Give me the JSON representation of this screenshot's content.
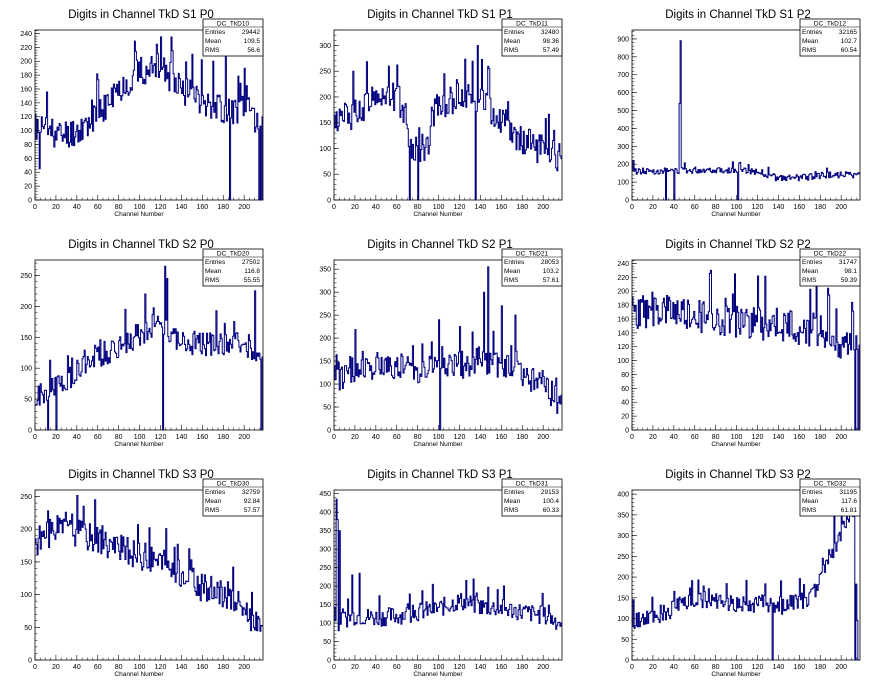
{
  "chart_data": [
    {
      "type": "histogram",
      "title": "Digits in Channel TkD S1 P0",
      "xlabel": "Channel Number",
      "xlim": [
        0,
        218
      ],
      "ylim": [
        0,
        245
      ],
      "xticks": [
        "0",
        "20",
        "40",
        "60",
        "80",
        "100",
        "120",
        "140",
        "160",
        "180",
        "200"
      ],
      "yticks": [
        "0",
        "20",
        "40",
        "60",
        "80",
        "100",
        "120",
        "140",
        "160",
        "180",
        "200",
        "220",
        "240"
      ],
      "stats": {
        "name": "DC_TkD10",
        "entries_label": "Entries",
        "entries": "29442",
        "mean_label": "Mean",
        "mean": "109.5",
        "rms_label": "RMS",
        "rms": "56.6"
      },
      "profile": [
        [
          0,
          105
        ],
        [
          10,
          105
        ],
        [
          20,
          92
        ],
        [
          40,
          100
        ],
        [
          60,
          122
        ],
        [
          80,
          160
        ],
        [
          100,
          185
        ],
        [
          120,
          190
        ],
        [
          140,
          160
        ],
        [
          160,
          145
        ],
        [
          180,
          130
        ],
        [
          200,
          130
        ],
        [
          218,
          110
        ]
      ],
      "spikes": [
        [
          4,
          45
        ],
        [
          120,
          235
        ],
        [
          131,
          215
        ],
        [
          150,
          210
        ],
        [
          170,
          200
        ],
        [
          182,
          225
        ],
        [
          186,
          0
        ],
        [
          200,
          190
        ],
        [
          214,
          0
        ],
        [
          216,
          0
        ]
      ],
      "noise": 22,
      "seed": 11,
      "color": "#00007f"
    },
    {
      "type": "histogram",
      "title": "Digits in Channel TkD S1 P1",
      "xlabel": "Channel Number",
      "xlim": [
        0,
        218
      ],
      "ylim": [
        0,
        330
      ],
      "xticks": [
        "0",
        "20",
        "40",
        "60",
        "80",
        "100",
        "120",
        "140",
        "160",
        "180",
        "200"
      ],
      "yticks": [
        "0",
        "50",
        "100",
        "150",
        "200",
        "250",
        "300"
      ],
      "stats": {
        "name": "DC_TkD11",
        "entries_label": "Entries",
        "entries": "32480",
        "mean_label": "Mean",
        "mean": "98.36",
        "rms_label": "RMS",
        "rms": "57.49"
      },
      "profile": [
        [
          0,
          150
        ],
        [
          20,
          170
        ],
        [
          40,
          205
        ],
        [
          60,
          200
        ],
        [
          70,
          160
        ],
        [
          72,
          100
        ],
        [
          90,
          100
        ],
        [
          92,
          170
        ],
        [
          120,
          200
        ],
        [
          140,
          200
        ],
        [
          160,
          150
        ],
        [
          180,
          115
        ],
        [
          200,
          95
        ],
        [
          218,
          80
        ]
      ],
      "spikes": [
        [
          72,
          0
        ],
        [
          80,
          0
        ],
        [
          137,
          300
        ],
        [
          135,
          0
        ],
        [
          52,
          260
        ],
        [
          60,
          262
        ],
        [
          105,
          245
        ]
      ],
      "noise": 30,
      "seed": 12,
      "color": "#00007f"
    },
    {
      "type": "histogram",
      "title": "Digits in Channel TkD S1 P2",
      "xlabel": "Channel Number",
      "xlim": [
        0,
        218
      ],
      "ylim": [
        0,
        950
      ],
      "xticks": [
        "0",
        "20",
        "40",
        "60",
        "80",
        "100",
        "120",
        "140",
        "160",
        "180",
        "200"
      ],
      "yticks": [
        "0",
        "100",
        "200",
        "300",
        "400",
        "500",
        "600",
        "700",
        "800",
        "900"
      ],
      "stats": {
        "name": "DC_TkD12",
        "entries_label": "Entries",
        "entries": "32165",
        "mean_label": "Mean",
        "mean": "102.7",
        "rms_label": "RMS",
        "rms": "60.54"
      },
      "profile": [
        [
          0,
          160
        ],
        [
          40,
          165
        ],
        [
          80,
          170
        ],
        [
          120,
          160
        ],
        [
          140,
          120
        ],
        [
          160,
          125
        ],
        [
          190,
          140
        ],
        [
          218,
          140
        ]
      ],
      "spikes": [
        [
          46,
          890
        ],
        [
          45,
          540
        ],
        [
          32,
          0
        ],
        [
          40,
          0
        ],
        [
          101,
          0
        ],
        [
          1,
          220
        ]
      ],
      "noise": 18,
      "seed": 13,
      "color": "#00007f"
    },
    {
      "type": "histogram",
      "title": "Digits in Channel TkD S2 P0",
      "xlabel": "Channel Number",
      "xlim": [
        0,
        218
      ],
      "ylim": [
        0,
        275
      ],
      "xticks": [
        "0",
        "20",
        "40",
        "60",
        "80",
        "100",
        "120",
        "140",
        "160",
        "180",
        "200"
      ],
      "yticks": [
        "0",
        "50",
        "100",
        "150",
        "200",
        "250"
      ],
      "stats": {
        "name": "DC_TkD20",
        "entries_label": "Entries",
        "entries": "27502",
        "mean_label": "Mean",
        "mean": "116.8",
        "rms_label": "RMS",
        "rms": "55.55"
      },
      "profile": [
        [
          0,
          50
        ],
        [
          20,
          70
        ],
        [
          40,
          95
        ],
        [
          60,
          120
        ],
        [
          80,
          135
        ],
        [
          100,
          155
        ],
        [
          120,
          175
        ],
        [
          140,
          140
        ],
        [
          160,
          140
        ],
        [
          180,
          140
        ],
        [
          200,
          140
        ],
        [
          218,
          120
        ]
      ],
      "spikes": [
        [
          122,
          0
        ],
        [
          124,
          265
        ],
        [
          126,
          245
        ],
        [
          20,
          0
        ],
        [
          12,
          0
        ],
        [
          105,
          220
        ],
        [
          210,
          225
        ],
        [
          216,
          0
        ]
      ],
      "noise": 20,
      "seed": 21,
      "color": "#00007f"
    },
    {
      "type": "histogram",
      "title": "Digits in Channel TkD S2 P1",
      "xlabel": "Channel Number",
      "xlim": [
        0,
        218
      ],
      "ylim": [
        0,
        370
      ],
      "xticks": [
        "0",
        "20",
        "40",
        "60",
        "80",
        "100",
        "120",
        "140",
        "160",
        "180",
        "200"
      ],
      "yticks": [
        "0",
        "50",
        "100",
        "150",
        "200",
        "250",
        "300",
        "350"
      ],
      "stats": {
        "name": "DC_TkD21",
        "entries_label": "Entries",
        "entries": "28053",
        "mean_label": "Mean",
        "mean": "103.2",
        "rms_label": "RMS",
        "rms": "57.61"
      },
      "profile": [
        [
          0,
          110
        ],
        [
          20,
          135
        ],
        [
          40,
          140
        ],
        [
          60,
          140
        ],
        [
          80,
          130
        ],
        [
          100,
          140
        ],
        [
          120,
          140
        ],
        [
          140,
          155
        ],
        [
          160,
          140
        ],
        [
          180,
          120
        ],
        [
          200,
          100
        ],
        [
          218,
          50
        ]
      ],
      "spikes": [
        [
          101,
          0
        ],
        [
          147,
          355
        ],
        [
          143,
          300
        ],
        [
          160,
          270
        ],
        [
          173,
          250
        ],
        [
          100,
          240
        ],
        [
          120,
          225
        ]
      ],
      "noise": 30,
      "seed": 22,
      "color": "#00007f"
    },
    {
      "type": "histogram",
      "title": "Digits in Channel TkD S2 P2",
      "xlabel": "Channel Number",
      "xlim": [
        0,
        218
      ],
      "ylim": [
        0,
        245
      ],
      "xticks": [
        "0",
        "20",
        "40",
        "60",
        "80",
        "100",
        "120",
        "140",
        "160",
        "180",
        "200"
      ],
      "yticks": [
        "0",
        "20",
        "40",
        "60",
        "80",
        "100",
        "120",
        "140",
        "160",
        "180",
        "200",
        "220",
        "240"
      ],
      "stats": {
        "name": "DC_TkD22",
        "entries_label": "Entries",
        "entries": "31747",
        "mean_label": "Mean",
        "mean": "98.1",
        "rms_label": "RMS",
        "rms": "59.39"
      },
      "profile": [
        [
          0,
          170
        ],
        [
          30,
          170
        ],
        [
          60,
          165
        ],
        [
          90,
          160
        ],
        [
          120,
          155
        ],
        [
          150,
          150
        ],
        [
          180,
          140
        ],
        [
          205,
          120
        ],
        [
          212,
          130
        ]
      ],
      "spikes": [
        [
          75,
          230
        ],
        [
          98,
          225
        ],
        [
          120,
          222
        ],
        [
          176,
          222
        ],
        [
          213,
          0
        ],
        [
          216,
          0
        ]
      ],
      "noise": 25,
      "seed": 23,
      "color": "#00007f"
    },
    {
      "type": "histogram",
      "title": "Digits in Channel TkD S3 P0",
      "xlabel": "Channel Number",
      "xlim": [
        0,
        218
      ],
      "ylim": [
        0,
        260
      ],
      "xticks": [
        "0",
        "20",
        "40",
        "60",
        "80",
        "100",
        "120",
        "140",
        "160",
        "180",
        "200"
      ],
      "yticks": [
        "0",
        "50",
        "100",
        "150",
        "200",
        "250"
      ],
      "stats": {
        "name": "DC_TkD30",
        "entries_label": "Entries",
        "entries": "32759",
        "mean_label": "Mean",
        "mean": "92.84",
        "rms_label": "RMS",
        "rms": "57.57"
      },
      "profile": [
        [
          0,
          180
        ],
        [
          20,
          200
        ],
        [
          40,
          195
        ],
        [
          60,
          185
        ],
        [
          80,
          170
        ],
        [
          100,
          160
        ],
        [
          120,
          150
        ],
        [
          140,
          130
        ],
        [
          160,
          110
        ],
        [
          180,
          100
        ],
        [
          200,
          80
        ],
        [
          212,
          50
        ],
        [
          218,
          35
        ]
      ],
      "spikes": [
        [
          57,
          245
        ],
        [
          12,
          228
        ],
        [
          46,
          235
        ]
      ],
      "noise": 22,
      "seed": 31,
      "color": "#00007f"
    },
    {
      "type": "histogram",
      "title": "Digits in Channel TkD S3 P1",
      "xlabel": "Channel Number",
      "xlim": [
        0,
        218
      ],
      "ylim": [
        0,
        460
      ],
      "xticks": [
        "0",
        "20",
        "40",
        "60",
        "80",
        "100",
        "120",
        "140",
        "160",
        "180",
        "200"
      ],
      "yticks": [
        "0",
        "50",
        "100",
        "150",
        "200",
        "250",
        "300",
        "350",
        "400",
        "450"
      ],
      "stats": {
        "name": "DC_TkD31",
        "entries_label": "Entries",
        "entries": "29153",
        "mean_label": "Mean",
        "mean": "100.4",
        "rms_label": "RMS",
        "rms": "60.33"
      },
      "profile": [
        [
          0,
          100
        ],
        [
          6,
          100
        ],
        [
          8,
          110
        ],
        [
          20,
          120
        ],
        [
          40,
          115
        ],
        [
          60,
          120
        ],
        [
          80,
          130
        ],
        [
          100,
          140
        ],
        [
          120,
          160
        ],
        [
          140,
          145
        ],
        [
          160,
          140
        ],
        [
          180,
          130
        ],
        [
          200,
          120
        ],
        [
          218,
          100
        ]
      ],
      "spikes": [
        [
          2,
          435
        ],
        [
          3,
          380
        ],
        [
          5,
          350
        ],
        [
          17,
          230
        ],
        [
          24,
          235
        ],
        [
          126,
          215
        ]
      ],
      "noise": 25,
      "seed": 32,
      "color": "#00007f"
    },
    {
      "type": "histogram",
      "title": "Digits in Channel TkD S3 P2",
      "xlabel": "Channel Number",
      "xlim": [
        0,
        218
      ],
      "ylim": [
        0,
        410
      ],
      "xticks": [
        "0",
        "20",
        "40",
        "60",
        "80",
        "100",
        "120",
        "140",
        "160",
        "180",
        "200"
      ],
      "yticks": [
        "0",
        "50",
        "100",
        "150",
        "200",
        "250",
        "300",
        "350",
        "400"
      ],
      "stats": {
        "name": "DC_TkD32",
        "entries_label": "Entries",
        "entries": "31195",
        "mean_label": "Mean",
        "mean": "117.6",
        "rms_label": "RMS",
        "rms": "61.81"
      },
      "profile": [
        [
          0,
          90
        ],
        [
          20,
          105
        ],
        [
          40,
          125
        ],
        [
          60,
          145
        ],
        [
          80,
          145
        ],
        [
          100,
          135
        ],
        [
          120,
          135
        ],
        [
          140,
          130
        ],
        [
          160,
          140
        ],
        [
          175,
          160
        ],
        [
          185,
          240
        ],
        [
          195,
          280
        ],
        [
          205,
          340
        ],
        [
          212,
          360
        ],
        [
          216,
          0
        ]
      ],
      "spikes": [
        [
          134,
          0
        ],
        [
          193,
          360
        ],
        [
          200,
          370
        ],
        [
          208,
          400
        ],
        [
          213,
          0
        ]
      ],
      "noise": 22,
      "seed": 33,
      "color": "#00007f"
    }
  ]
}
